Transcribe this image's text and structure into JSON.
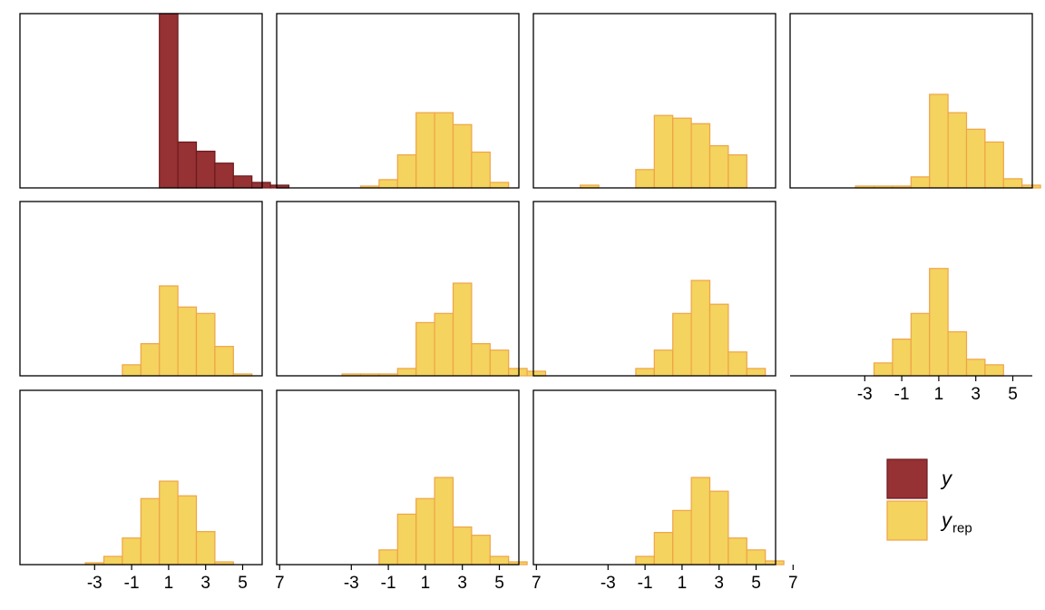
{
  "chart_data": {
    "type": "histogram-grid",
    "title": "",
    "xlabel": "",
    "ylabel": "",
    "grid": false,
    "legend_position": "bottom-right",
    "bin_width": 1,
    "xlim": [
      -4.5,
      8
    ],
    "x_ticks": [
      "-3",
      "-1",
      "1",
      "3",
      "5",
      "7"
    ],
    "colors": {
      "y_fill": "#963134",
      "y_edge": "#6b1a1d",
      "yrep_fill": "#f4d35e",
      "yrep_edge": "#eea449",
      "frame": "#000000"
    },
    "legend": [
      {
        "key": "y",
        "label": "y",
        "subscript": "",
        "style": "y"
      },
      {
        "key": "yrep",
        "label": "y",
        "subscript": "rep",
        "style": "yrep"
      }
    ],
    "panels": [
      {
        "series": "y",
        "ylim": [
          0,
          190
        ],
        "x_ticks_shown": false,
        "bins": [
          [
            0.5,
            190
          ],
          [
            1.5,
            50
          ],
          [
            2.5,
            40
          ],
          [
            3.5,
            27
          ],
          [
            4.5,
            13
          ],
          [
            5.5,
            6
          ],
          [
            6.5,
            3
          ]
        ]
      },
      {
        "series": "yrep",
        "ylim": [
          0,
          190
        ],
        "x_ticks_shown": false,
        "bins": [
          [
            -2.5,
            2
          ],
          [
            -1.5,
            9
          ],
          [
            -0.5,
            36
          ],
          [
            0.5,
            82
          ],
          [
            1.5,
            82
          ],
          [
            2.5,
            69
          ],
          [
            3.5,
            39
          ],
          [
            4.5,
            6
          ]
        ]
      },
      {
        "series": "yrep",
        "ylim": [
          0,
          190
        ],
        "x_ticks_shown": false,
        "bins": [
          [
            -4.5,
            3
          ],
          [
            -2.5,
            0
          ],
          [
            -1.5,
            20
          ],
          [
            -0.5,
            79
          ],
          [
            0.5,
            76
          ],
          [
            1.5,
            70
          ],
          [
            2.5,
            46
          ],
          [
            3.5,
            36
          ]
        ]
      },
      {
        "series": "yrep",
        "ylim": [
          0,
          190
        ],
        "x_ticks_shown": false,
        "bins": [
          [
            -3.5,
            2
          ],
          [
            -2.5,
            2
          ],
          [
            -1.5,
            2
          ],
          [
            -0.5,
            12
          ],
          [
            0.5,
            102
          ],
          [
            1.5,
            82
          ],
          [
            2.5,
            64
          ],
          [
            3.5,
            50
          ],
          [
            4.5,
            10
          ],
          [
            5.5,
            3
          ]
        ]
      },
      {
        "series": "yrep",
        "ylim": [
          0,
          190
        ],
        "x_ticks_shown": false,
        "bins": [
          [
            -1.5,
            12
          ],
          [
            -0.5,
            35
          ],
          [
            0.5,
            98
          ],
          [
            1.5,
            75
          ],
          [
            2.5,
            68
          ],
          [
            3.5,
            32
          ],
          [
            4.5,
            2
          ]
        ]
      },
      {
        "series": "yrep",
        "ylim": [
          0,
          190
        ],
        "x_ticks_shown": false,
        "bins": [
          [
            -3.5,
            2
          ],
          [
            -2.5,
            2
          ],
          [
            -1.5,
            2
          ],
          [
            -0.5,
            8
          ],
          [
            0.5,
            58
          ],
          [
            1.5,
            68
          ],
          [
            2.5,
            101
          ],
          [
            3.5,
            35
          ],
          [
            4.5,
            28
          ],
          [
            5.5,
            8
          ],
          [
            6.5,
            5
          ]
        ]
      },
      {
        "series": "yrep",
        "ylim": [
          0,
          190
        ],
        "x_ticks_shown": false,
        "bins": [
          [
            -1.5,
            8
          ],
          [
            -0.5,
            28
          ],
          [
            0.5,
            68
          ],
          [
            1.5,
            104
          ],
          [
            2.5,
            78
          ],
          [
            3.5,
            26
          ],
          [
            4.5,
            8
          ]
        ]
      },
      {
        "series": "yrep",
        "ylim": [
          0,
          190
        ],
        "x_ticks_shown": true,
        "bins": [
          [
            -2.5,
            14
          ],
          [
            -1.5,
            40
          ],
          [
            -0.5,
            68
          ],
          [
            0.5,
            117
          ],
          [
            1.5,
            48
          ],
          [
            2.5,
            18
          ],
          [
            3.5,
            12
          ]
        ]
      },
      {
        "series": "yrep",
        "ylim": [
          0,
          190
        ],
        "x_ticks_shown": true,
        "bins": [
          [
            -3.5,
            2
          ],
          [
            -2.5,
            9
          ],
          [
            -1.5,
            29
          ],
          [
            -0.5,
            72
          ],
          [
            0.5,
            91
          ],
          [
            1.5,
            75
          ],
          [
            2.5,
            36
          ],
          [
            3.5,
            3
          ]
        ]
      },
      {
        "series": "yrep",
        "ylim": [
          0,
          190
        ],
        "x_ticks_shown": true,
        "bins": [
          [
            -1.5,
            16
          ],
          [
            -0.5,
            55
          ],
          [
            0.5,
            72
          ],
          [
            1.5,
            95
          ],
          [
            2.5,
            41
          ],
          [
            3.5,
            32
          ],
          [
            4.5,
            9
          ],
          [
            5.5,
            3
          ]
        ]
      },
      {
        "series": "yrep",
        "ylim": [
          0,
          190
        ],
        "x_ticks_shown": true,
        "bins": [
          [
            -1.5,
            9
          ],
          [
            -0.5,
            35
          ],
          [
            0.5,
            59
          ],
          [
            1.5,
            95
          ],
          [
            2.5,
            80
          ],
          [
            3.5,
            29
          ],
          [
            4.5,
            16
          ],
          [
            5.5,
            4
          ]
        ]
      }
    ]
  }
}
